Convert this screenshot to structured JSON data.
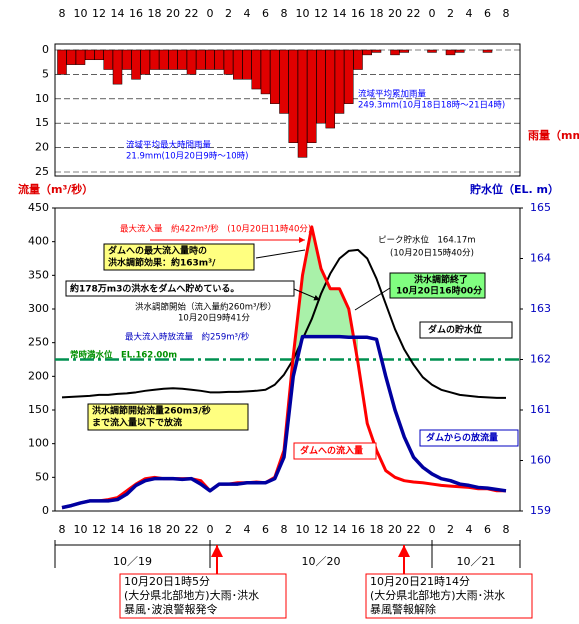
{
  "chart_data": [
    {
      "type": "bar",
      "y_label": "雨量（mm）",
      "inverted": true,
      "color": "#e00000",
      "grid": true,
      "categories": [
        "8",
        null,
        "10",
        null,
        "12",
        null,
        "14",
        null,
        "16",
        null,
        "18",
        null,
        "20",
        null,
        "22",
        null,
        "0",
        null,
        "2",
        null,
        "4",
        null,
        "6",
        null,
        "8",
        null,
        "10",
        null,
        "12",
        null,
        "14",
        null,
        "16",
        null,
        "18",
        null,
        "20",
        null,
        "22",
        null,
        "0",
        null,
        "2",
        null,
        "4",
        null,
        "6",
        null,
        "8"
      ],
      "values": [
        5,
        3,
        3,
        2,
        2,
        4,
        7,
        4,
        6,
        5,
        4,
        4,
        4,
        4,
        5,
        4,
        4,
        4,
        5,
        6,
        6,
        8,
        9,
        11,
        13,
        19,
        22,
        19,
        15,
        16,
        13,
        11,
        4,
        1,
        0.5,
        0,
        1,
        0.5,
        0,
        0,
        0.5,
        0,
        1,
        0.5,
        0,
        0,
        0.5,
        0,
        0
      ],
      "ylim": [
        0,
        25
      ],
      "yticks": [
        0,
        5,
        10,
        15,
        20,
        25
      ],
      "annotations": {
        "cumulative": [
          "流域平均累加雨量",
          "249.3mm(10月18日18時～21日4時)"
        ],
        "max_hourly": [
          "流域平均最大時間雨量",
          "21.9mm(10月20日9時～10時)"
        ]
      }
    },
    {
      "type": "line",
      "y_label": "流量（m³/秒）",
      "y2_label": "貯水位（EL. m）",
      "grid": true,
      "categories": [
        "8",
        null,
        "10",
        null,
        "12",
        null,
        "14",
        null,
        "16",
        null,
        "18",
        null,
        "20",
        null,
        "22",
        null,
        "0",
        null,
        "2",
        null,
        "4",
        null,
        "6",
        null,
        "8",
        null,
        "10",
        null,
        "12",
        null,
        "14",
        null,
        "16",
        null,
        "18",
        null,
        "20",
        null,
        "22",
        null,
        "0",
        null,
        "2",
        null,
        "4",
        null,
        "6",
        null,
        "8"
      ],
      "date_labels": [
        "10／19",
        "10／20",
        "10／21"
      ],
      "series": [
        {
          "name": "ダムへの流入量",
          "color": "#ff0000",
          "values": [
            5,
            8,
            12,
            15,
            15,
            17,
            20,
            30,
            40,
            48,
            50,
            48,
            48,
            48,
            48,
            45,
            30,
            40,
            40,
            42,
            42,
            43,
            42,
            50,
            90,
            230,
            350,
            422,
            360,
            330,
            330,
            300,
            220,
            130,
            90,
            60,
            50,
            45,
            43,
            42,
            40,
            38,
            37,
            36,
            35,
            33,
            33,
            30,
            30
          ]
        },
        {
          "name": "ダムからの放流量",
          "color": "#0000a0",
          "values": [
            5,
            8,
            12,
            15,
            15,
            15,
            17,
            25,
            38,
            45,
            48,
            48,
            48,
            47,
            48,
            40,
            30,
            40,
            40,
            40,
            42,
            42,
            42,
            48,
            80,
            200,
            259,
            259,
            259,
            259,
            259,
            258,
            258,
            258,
            255,
            200,
            150,
            110,
            80,
            65,
            55,
            48,
            45,
            40,
            38,
            35,
            34,
            32,
            30
          ]
        },
        {
          "name": "ダムの貯水位",
          "color": "#000000",
          "axis": "y2",
          "values": [
            161.25,
            161.26,
            161.27,
            161.28,
            161.3,
            161.3,
            161.32,
            161.33,
            161.35,
            161.38,
            161.4,
            161.42,
            161.43,
            161.42,
            161.4,
            161.38,
            161.35,
            161.35,
            161.36,
            161.36,
            161.37,
            161.38,
            161.4,
            161.5,
            161.7,
            162.0,
            162.4,
            162.8,
            163.3,
            163.7,
            164.0,
            164.15,
            164.17,
            164.0,
            163.6,
            163.1,
            162.6,
            162.2,
            161.9,
            161.65,
            161.5,
            161.4,
            161.35,
            161.3,
            161.28,
            161.26,
            161.25,
            161.24,
            161.24
          ]
        }
      ],
      "ylim": [
        0,
        450
      ],
      "yticks": [
        0,
        50,
        100,
        150,
        200,
        250,
        300,
        350,
        400,
        450
      ],
      "y2lim": [
        159,
        165
      ],
      "y2ticks": [
        159,
        160,
        161,
        162,
        163,
        164,
        165
      ],
      "normal_level": 162.0,
      "annotations": {
        "max_inflow": "最大流入量　約422m³/秒　(10月20日11時40分)",
        "effect": [
          "ダムへの最大流入量時の",
          "洪水調節効果：約163m³/"
        ],
        "stored": "約178万m3の洪水をダムへ貯めている。",
        "start": [
          "洪水調節開始（流入量約260m³/秒）",
          "10月20日9時41分"
        ],
        "max_outflow": "最大流入時放流量　約259m³/秒",
        "normal_level": "常時満水位　EL.162.00m",
        "peak": [
          "ピーク貯水位　164.17m",
          "(10月20日15時40分)"
        ],
        "end": [
          "洪水調節終了",
          "10月20日16時00分"
        ],
        "release": [
          "洪水調節開始流量260m3/秒",
          "まで流入量以下で放流"
        ],
        "warn_issue": [
          "10月20日1時5分",
          "(大分県北部地方)大雨･洪水",
          "暴風･波浪警報発令"
        ],
        "warn_lift": [
          "10月20日21時14分",
          "(大分県北部地方)大雨･洪水",
          "暴風警報解除"
        ]
      }
    }
  ]
}
